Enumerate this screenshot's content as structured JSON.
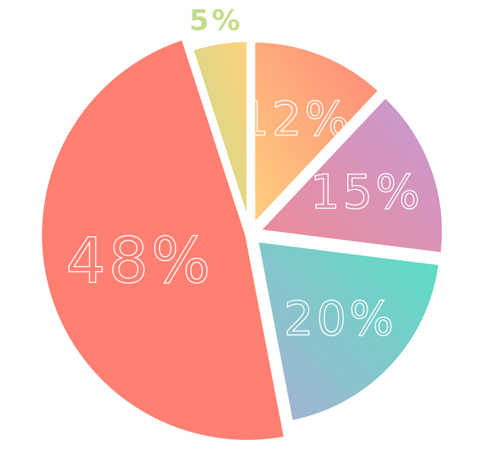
{
  "chart_data": {
    "type": "pie",
    "categories": [
      null,
      null,
      null,
      null,
      null
    ],
    "values": [
      12,
      15,
      20,
      48,
      5
    ],
    "value_labels": [
      "12%",
      "15%",
      "20%",
      "48%",
      "5%"
    ],
    "colors": [
      [
        "#ff857a",
        "#ffd17e"
      ],
      [
        "#c59bd6",
        "#ee8a95"
      ],
      [
        "#57e0c2",
        "#aab0d4"
      ],
      [
        "#ff7f72",
        "#ff7f72"
      ],
      [
        "#ffd17e",
        "#c3dc8c"
      ]
    ]
  }
}
